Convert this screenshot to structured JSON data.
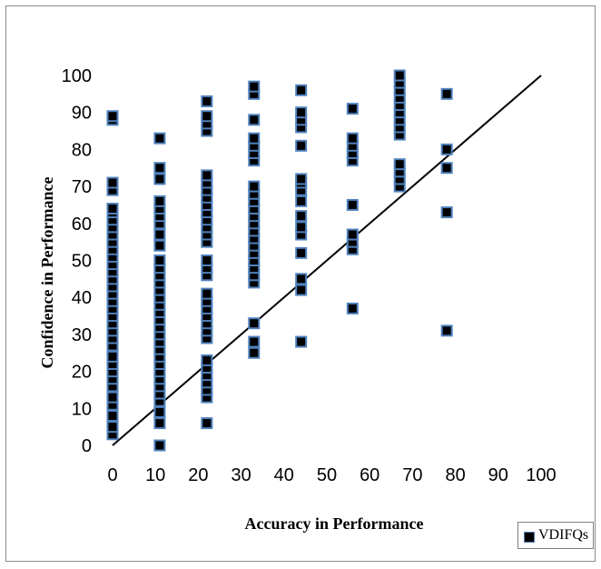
{
  "chart_data": {
    "type": "scatter",
    "title": "",
    "xlabel": "Accuracy in Performance",
    "ylabel": "Confidence in Performance",
    "xlim": [
      0,
      100
    ],
    "ylim": [
      0,
      100
    ],
    "x_ticks": [
      0,
      10,
      20,
      30,
      40,
      50,
      60,
      70,
      80,
      90,
      100
    ],
    "y_ticks": [
      0,
      10,
      20,
      30,
      40,
      50,
      60,
      70,
      80,
      90,
      100
    ],
    "grid": false,
    "legend_position": "bottom-right",
    "reference_line": {
      "from": [
        0,
        0
      ],
      "to": [
        100,
        100
      ]
    },
    "series": [
      {
        "name": "VDIFQs",
        "marker_fill": "#000000",
        "marker_edge": "#4f81bd",
        "points": [
          [
            0,
            3
          ],
          [
            0,
            5
          ],
          [
            0,
            8
          ],
          [
            0,
            11
          ],
          [
            0,
            13
          ],
          [
            0,
            16
          ],
          [
            0,
            18
          ],
          [
            0,
            20
          ],
          [
            0,
            22
          ],
          [
            0,
            24
          ],
          [
            0,
            27
          ],
          [
            0,
            29
          ],
          [
            0,
            31
          ],
          [
            0,
            33
          ],
          [
            0,
            35
          ],
          [
            0,
            37
          ],
          [
            0,
            39
          ],
          [
            0,
            41
          ],
          [
            0,
            43
          ],
          [
            0,
            45
          ],
          [
            0,
            47
          ],
          [
            0,
            49
          ],
          [
            0,
            51
          ],
          [
            0,
            53
          ],
          [
            0,
            55
          ],
          [
            0,
            57
          ],
          [
            0,
            59
          ],
          [
            0,
            61
          ],
          [
            0,
            63
          ],
          [
            0,
            64
          ],
          [
            0,
            69
          ],
          [
            0,
            71
          ],
          [
            0,
            88
          ],
          [
            0,
            89
          ],
          [
            11,
            0
          ],
          [
            11,
            6
          ],
          [
            11,
            9
          ],
          [
            11,
            12
          ],
          [
            11,
            14
          ],
          [
            11,
            16
          ],
          [
            11,
            18
          ],
          [
            11,
            20
          ],
          [
            11,
            22
          ],
          [
            11,
            24
          ],
          [
            11,
            26
          ],
          [
            11,
            28
          ],
          [
            11,
            30
          ],
          [
            11,
            32
          ],
          [
            11,
            34
          ],
          [
            11,
            36
          ],
          [
            11,
            38
          ],
          [
            11,
            40
          ],
          [
            11,
            42
          ],
          [
            11,
            44
          ],
          [
            11,
            46
          ],
          [
            11,
            48
          ],
          [
            11,
            50
          ],
          [
            11,
            54
          ],
          [
            11,
            57
          ],
          [
            11,
            60
          ],
          [
            11,
            62
          ],
          [
            11,
            64
          ],
          [
            11,
            66
          ],
          [
            11,
            72
          ],
          [
            11,
            75
          ],
          [
            11,
            83
          ],
          [
            22,
            6
          ],
          [
            22,
            13
          ],
          [
            22,
            15
          ],
          [
            22,
            17
          ],
          [
            22,
            19
          ],
          [
            22,
            21
          ],
          [
            22,
            23
          ],
          [
            22,
            29
          ],
          [
            22,
            31
          ],
          [
            22,
            33
          ],
          [
            22,
            35
          ],
          [
            22,
            37
          ],
          [
            22,
            39
          ],
          [
            22,
            41
          ],
          [
            22,
            46
          ],
          [
            22,
            48
          ],
          [
            22,
            50
          ],
          [
            22,
            55
          ],
          [
            22,
            57
          ],
          [
            22,
            59
          ],
          [
            22,
            61
          ],
          [
            22,
            63
          ],
          [
            22,
            65
          ],
          [
            22,
            67
          ],
          [
            22,
            69
          ],
          [
            22,
            71
          ],
          [
            22,
            73
          ],
          [
            22,
            85
          ],
          [
            22,
            87
          ],
          [
            22,
            89
          ],
          [
            22,
            93
          ],
          [
            33,
            25
          ],
          [
            33,
            28
          ],
          [
            33,
            33
          ],
          [
            33,
            44
          ],
          [
            33,
            46
          ],
          [
            33,
            48
          ],
          [
            33,
            50
          ],
          [
            33,
            52
          ],
          [
            33,
            54
          ],
          [
            33,
            56
          ],
          [
            33,
            58
          ],
          [
            33,
            60
          ],
          [
            33,
            62
          ],
          [
            33,
            64
          ],
          [
            33,
            66
          ],
          [
            33,
            68
          ],
          [
            33,
            70
          ],
          [
            33,
            77
          ],
          [
            33,
            79
          ],
          [
            33,
            81
          ],
          [
            33,
            83
          ],
          [
            33,
            88
          ],
          [
            33,
            95
          ],
          [
            33,
            97
          ],
          [
            44,
            28
          ],
          [
            44,
            42
          ],
          [
            44,
            45
          ],
          [
            44,
            52
          ],
          [
            44,
            57
          ],
          [
            44,
            59
          ],
          [
            44,
            62
          ],
          [
            44,
            66
          ],
          [
            44,
            69
          ],
          [
            44,
            71
          ],
          [
            44,
            72
          ],
          [
            44,
            81
          ],
          [
            44,
            86
          ],
          [
            44,
            88
          ],
          [
            44,
            90
          ],
          [
            44,
            96
          ],
          [
            56,
            37
          ],
          [
            56,
            53
          ],
          [
            56,
            55
          ],
          [
            56,
            57
          ],
          [
            56,
            65
          ],
          [
            56,
            77
          ],
          [
            56,
            79
          ],
          [
            56,
            81
          ],
          [
            56,
            83
          ],
          [
            56,
            91
          ],
          [
            67,
            70
          ],
          [
            67,
            72
          ],
          [
            67,
            74
          ],
          [
            67,
            76
          ],
          [
            67,
            84
          ],
          [
            67,
            86
          ],
          [
            67,
            88
          ],
          [
            67,
            90
          ],
          [
            67,
            92
          ],
          [
            67,
            94
          ],
          [
            67,
            96
          ],
          [
            67,
            98
          ],
          [
            67,
            100
          ],
          [
            78,
            31
          ],
          [
            78,
            63
          ],
          [
            78,
            75
          ],
          [
            78,
            80
          ],
          [
            78,
            95
          ]
        ]
      }
    ]
  },
  "legend": {
    "label": "VDIFQs"
  }
}
